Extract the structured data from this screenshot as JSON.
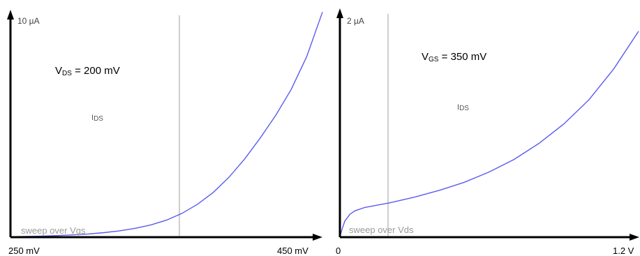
{
  "chart_data": [
    {
      "type": "line",
      "ymax_label": "10 µA",
      "xmin_label": "250 mV",
      "xmax_label": "450 mV",
      "annotation": {
        "main": "V",
        "sub": "DS",
        "rest": " = 200 mV"
      },
      "series_label": {
        "main": "I",
        "sub": "DS"
      },
      "sweep_label": "sweep over Vgs",
      "xlim": [
        250,
        450
      ],
      "ylim": [
        0,
        10
      ],
      "cursor_x": 355,
      "series": [
        {
          "x": [
            250,
            260,
            270,
            280,
            290,
            300,
            310,
            320,
            330,
            340,
            350,
            360,
            370,
            380,
            390,
            400,
            410,
            420,
            430,
            440,
            450
          ],
          "y": [
            0.02,
            0.03,
            0.05,
            0.07,
            0.1,
            0.14,
            0.2,
            0.28,
            0.39,
            0.54,
            0.75,
            1.05,
            1.45,
            1.97,
            2.63,
            3.43,
            4.35,
            5.35,
            6.5,
            7.95,
            9.9
          ]
        }
      ],
      "colors": {
        "axis": "#000000",
        "curve": "#5b5bef",
        "cursor": "#b4b4b4",
        "sweep": "#9a9a9a"
      }
    },
    {
      "type": "line",
      "ymax_label": "2 µA",
      "xmin_label": "0",
      "xmax_label": "1.2 V",
      "annotation": {
        "main": "V",
        "sub": "GS",
        "rest": " = 350 mV"
      },
      "series_label": {
        "main": "I",
        "sub": "DS"
      },
      "sweep_label": "sweep over Vds",
      "xlim": [
        0,
        1.2
      ],
      "ylim": [
        0,
        2
      ],
      "cursor_x": 0.19,
      "series": [
        {
          "x": [
            0,
            0.01,
            0.02,
            0.04,
            0.06,
            0.1,
            0.15,
            0.2,
            0.3,
            0.4,
            0.5,
            0.6,
            0.7,
            0.8,
            0.9,
            1.0,
            1.1,
            1.2
          ],
          "y": [
            0,
            0.08,
            0.14,
            0.2,
            0.23,
            0.26,
            0.28,
            0.3,
            0.35,
            0.41,
            0.48,
            0.57,
            0.68,
            0.82,
            0.99,
            1.2,
            1.47,
            1.8
          ]
        }
      ],
      "colors": {
        "axis": "#000000",
        "curve": "#5b5bef",
        "cursor": "#b4b4b4",
        "sweep": "#9a9a9a"
      }
    }
  ]
}
